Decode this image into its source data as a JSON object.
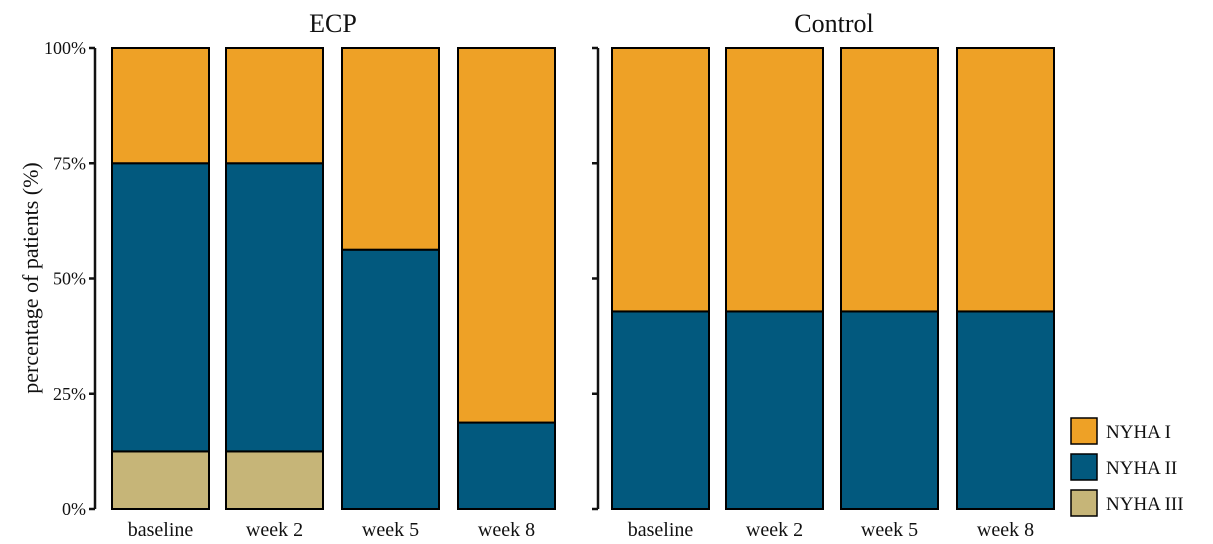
{
  "chart_data": {
    "type": "bar",
    "stacked": true,
    "percent": true,
    "ylabel": "percentage of patients (%)",
    "yticks": [
      "0%",
      "25%",
      "50%",
      "75%",
      "100%"
    ],
    "ylim": [
      0,
      100
    ],
    "colors": {
      "NYHA I": "#eea126",
      "NYHA II": "#02597e",
      "NYHA III": "#c6b578"
    },
    "legend": {
      "position": "bottom-right",
      "entries": [
        "NYHA I",
        "NYHA II",
        "NYHA III"
      ]
    },
    "panels": [
      {
        "title": "ECP",
        "categories": [
          "baseline",
          "week 2",
          "week 5",
          "week 8"
        ],
        "series": [
          {
            "name": "NYHA III",
            "values": [
              12.5,
              12.5,
              0,
              0
            ]
          },
          {
            "name": "NYHA II",
            "values": [
              62.5,
              62.5,
              56.25,
              18.75
            ]
          },
          {
            "name": "NYHA I",
            "values": [
              25,
              25,
              43.75,
              81.25
            ]
          }
        ]
      },
      {
        "title": "Control",
        "categories": [
          "baseline",
          "week 2",
          "week 5",
          "week 8"
        ],
        "series": [
          {
            "name": "NYHA III",
            "values": [
              0,
              0,
              0,
              0
            ]
          },
          {
            "name": "NYHA II",
            "values": [
              42.86,
              42.86,
              42.86,
              42.86
            ]
          },
          {
            "name": "NYHA I",
            "values": [
              57.14,
              57.14,
              57.14,
              57.14
            ]
          }
        ]
      }
    ]
  }
}
